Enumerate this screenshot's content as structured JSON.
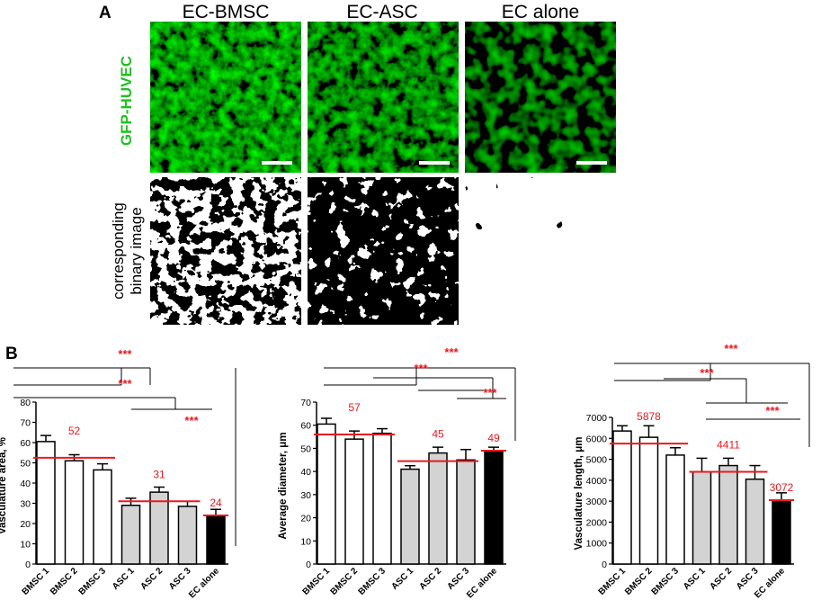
{
  "panel_a": {
    "label": "A",
    "columns": [
      "EC-BMSC",
      "EC-ASC",
      "EC alone"
    ],
    "row_label_top": "GFP-HUVEC",
    "row_label_bottom_line1": "corresponding",
    "row_label_bottom_line2": "binary image",
    "label_color": "#22c022"
  },
  "panel_b": {
    "label": "B",
    "significance": "***",
    "significance_color": "#e8191f",
    "mean_line_color": "#e8191f"
  },
  "chart_data": [
    {
      "type": "bar",
      "ylabel": "Vasculature area, %",
      "ylim": [
        0,
        80
      ],
      "yticks": [
        0,
        10,
        20,
        30,
        40,
        50,
        60,
        70,
        80
      ],
      "categories": [
        "BMSC 1",
        "BMSC 2",
        "BMSC 3",
        "ASC 1",
        "ASC 2",
        "ASC 3",
        "EC alone"
      ],
      "values": [
        60.5,
        51,
        46.5,
        29,
        35.5,
        28.5,
        23.5
      ],
      "errors": [
        3,
        3,
        3,
        3.5,
        2.5,
        2.5,
        3.5
      ],
      "fills": [
        "#ffffff",
        "#ffffff",
        "#ffffff",
        "#d3d3d3",
        "#d3d3d3",
        "#d3d3d3",
        "#000000"
      ],
      "group_means": [
        {
          "label": "52",
          "value": 52.5,
          "from": 0,
          "to": 2
        },
        {
          "label": "31",
          "value": 31,
          "from": 3,
          "to": 5
        },
        {
          "label": "24",
          "value": 24,
          "from": 6,
          "to": 6
        }
      ]
    },
    {
      "type": "bar",
      "ylabel": "Average diameter, μm",
      "ylim": [
        0,
        70
      ],
      "yticks": [
        0,
        10,
        20,
        30,
        40,
        50,
        60,
        70
      ],
      "categories": [
        "BMSC 1",
        "BMSC 2",
        "BMSC 3",
        "ASC 1",
        "ASC 2",
        "ASC 3",
        "EC alone"
      ],
      "values": [
        60.5,
        54,
        56.5,
        41,
        48,
        45,
        49
      ],
      "errors": [
        2.5,
        3.5,
        2,
        1.5,
        2.5,
        4.5,
        1.5
      ],
      "fills": [
        "#ffffff",
        "#ffffff",
        "#ffffff",
        "#d3d3d3",
        "#d3d3d3",
        "#d3d3d3",
        "#000000"
      ],
      "group_means": [
        {
          "label": "57",
          "value": 56,
          "from": 0,
          "to": 2
        },
        {
          "label": "45",
          "value": 44.5,
          "from": 3,
          "to": 5
        },
        {
          "label": "49",
          "value": 49,
          "from": 6,
          "to": 6
        }
      ]
    },
    {
      "type": "bar",
      "ylabel": "Vasculature length, μm",
      "ylim": [
        0,
        7000
      ],
      "yticks": [
        0,
        1000,
        2000,
        3000,
        4000,
        5000,
        6000,
        7000
      ],
      "categories": [
        "BMSC 1",
        "BMSC 2",
        "BMSC 3",
        "ASC 1",
        "ASC 2",
        "ASC 3",
        "EC alone"
      ],
      "values": [
        6350,
        6050,
        5200,
        4400,
        4700,
        4050,
        3050
      ],
      "errors": [
        250,
        550,
        350,
        650,
        350,
        650,
        350
      ],
      "fills": [
        "#ffffff",
        "#ffffff",
        "#ffffff",
        "#d3d3d3",
        "#d3d3d3",
        "#d3d3d3",
        "#000000"
      ],
      "group_means": [
        {
          "label": "5878",
          "value": 5750,
          "from": 0,
          "to": 2
        },
        {
          "label": "4411",
          "value": 4400,
          "from": 3,
          "to": 5
        },
        {
          "label": "3072",
          "value": 3050,
          "from": 6,
          "to": 6
        }
      ]
    }
  ]
}
